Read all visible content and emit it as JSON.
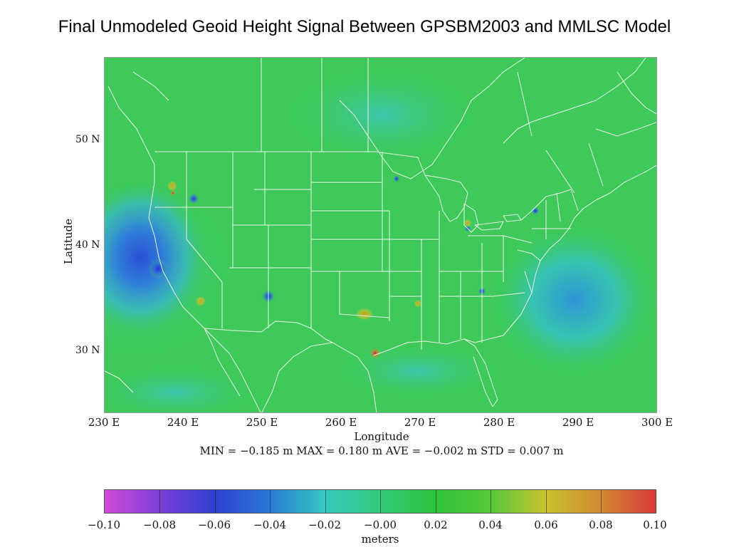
{
  "title": "Final Unmodeled Geoid Height Signal Between GPSBM2003 and MMLSC Model",
  "map": {
    "x_axis_title": "Longitude",
    "y_axis_title": "Latitude",
    "x_ticks": [
      "230 E",
      "240 E",
      "250 E",
      "260 E",
      "270 E",
      "280 E",
      "290 E",
      "300 E"
    ],
    "y_ticks": [
      "50 N",
      "40 N",
      "30 N"
    ],
    "background_color": "#3ec95a",
    "boundary_color": "#e8f5e8"
  },
  "stats": "MIN = −0.185 m   MAX = 0.180 m   AVE = −0.002 m   STD = 0.007 m",
  "colorbar": {
    "labels": [
      "−0.10",
      "−0.08",
      "−0.06",
      "−0.04",
      "−0.02",
      "−0.00",
      "0.02",
      "0.04",
      "0.06",
      "0.08",
      "0.10"
    ],
    "units": "meters",
    "min_color": "#d24ad8",
    "max_color": "#d8383a"
  }
}
